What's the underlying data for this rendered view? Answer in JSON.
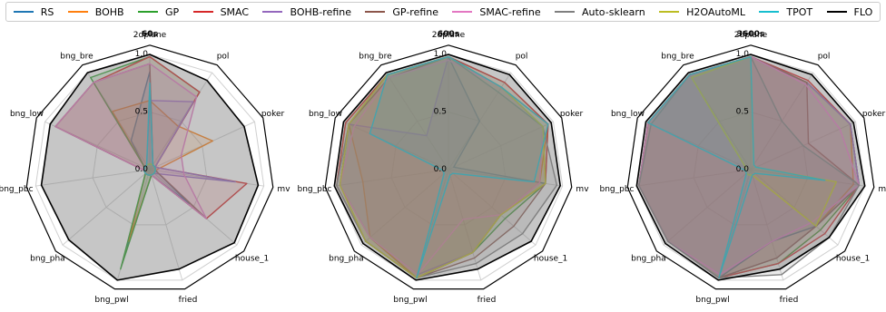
{
  "legend": [
    {
      "name": "RS",
      "color": "#1f77b4"
    },
    {
      "name": "BOHB",
      "color": "#ff7f0e"
    },
    {
      "name": "GP",
      "color": "#2ca02c"
    },
    {
      "name": "SMAC",
      "color": "#d62728"
    },
    {
      "name": "BOHB-refine",
      "color": "#9467bd"
    },
    {
      "name": "GP-refine",
      "color": "#8c564b"
    },
    {
      "name": "SMAC-refine",
      "color": "#e377c2"
    },
    {
      "name": "Auto-sklearn",
      "color": "#7f7f7f"
    },
    {
      "name": "H2OAutoML",
      "color": "#bcbd22"
    },
    {
      "name": "TPOT",
      "color": "#17becf"
    },
    {
      "name": "FLO",
      "color": "#000000"
    }
  ],
  "chart_data": [
    {
      "type": "radar",
      "title": "60s",
      "categories": [
        "2dplane",
        "pol",
        "poker",
        "mv",
        "house_1",
        "fried",
        "bng_pwl",
        "bng_pha",
        "bng_pbc",
        "bng_low",
        "bng_bre"
      ],
      "rlim": [
        0,
        1
      ],
      "rticks": [
        0.0,
        0.5,
        1.0
      ],
      "series": [
        {
          "name": "RS",
          "values": [
            0.85,
            0.05,
            0.05,
            0.05,
            0.45,
            0.05,
            0.7,
            0.05,
            0.05,
            0.05,
            0.3
          ]
        },
        {
          "name": "BOHB",
          "values": [
            0.6,
            0.45,
            0.6,
            0.05,
            0.05,
            0.05,
            0.65,
            0.05,
            0.05,
            0.05,
            0.6
          ]
        },
        {
          "name": "GP",
          "values": [
            0.98,
            0.8,
            0.05,
            0.05,
            0.05,
            0.05,
            0.9,
            0.05,
            0.05,
            0.05,
            0.95
          ]
        },
        {
          "name": "SMAC",
          "values": [
            0.98,
            0.8,
            0.05,
            0.85,
            0.65,
            0.05,
            0.05,
            0.05,
            0.05,
            0.9,
            0.9
          ]
        },
        {
          "name": "BOHB-refine",
          "values": [
            0.6,
            0.7,
            0.05,
            0.75,
            0.05,
            0.05,
            0.05,
            0.05,
            0.05,
            0.05,
            0.05
          ]
        },
        {
          "name": "GP-refine",
          "values": [
            0.92,
            0.05,
            0.05,
            0.05,
            0.65,
            0.05,
            0.05,
            0.05,
            0.05,
            0.9,
            0.9
          ]
        },
        {
          "name": "SMAC-refine",
          "values": [
            0.92,
            0.75,
            0.3,
            0.3,
            0.65,
            0.05,
            0.05,
            0.05,
            0.05,
            0.9,
            0.9
          ]
        },
        {
          "name": "Auto-sklearn",
          "values": [
            0.05,
            0.05,
            0.05,
            0.05,
            0.05,
            0.05,
            0.05,
            0.05,
            0.05,
            0.05,
            0.05
          ]
        },
        {
          "name": "H2OAutoML",
          "values": [
            0.05,
            0.05,
            0.05,
            0.05,
            0.05,
            0.05,
            0.05,
            0.05,
            0.05,
            0.05,
            0.05
          ]
        },
        {
          "name": "TPOT",
          "values": [
            0.75,
            0.05,
            0.05,
            0.05,
            0.05,
            0.05,
            0.05,
            0.05,
            0.05,
            0.05,
            0.05
          ]
        },
        {
          "name": "FLO",
          "values": [
            1.0,
            0.92,
            0.9,
            0.95,
            0.97,
            0.9,
            1.0,
            0.93,
            0.95,
            0.95,
            1.0
          ]
        }
      ]
    },
    {
      "type": "radar",
      "title": "600s",
      "categories": [
        "2dplane",
        "pol",
        "poker",
        "mv",
        "house_1",
        "fried",
        "bng_pwl",
        "bng_pha",
        "bng_pbc",
        "bng_low",
        "bng_bre"
      ],
      "rlim": [
        0,
        1
      ],
      "rticks": [
        0.0,
        0.5,
        1.0
      ],
      "series": [
        {
          "name": "RS",
          "values": [
            0.98,
            0.5,
            0.05,
            0.85,
            0.6,
            0.75,
            0.98,
            0.9,
            0.95,
            0.95,
            0.98
          ]
        },
        {
          "name": "BOHB",
          "values": [
            0.98,
            0.85,
            0.95,
            0.8,
            0.6,
            0.75,
            0.98,
            0.9,
            0.75,
            0.95,
            0.98
          ]
        },
        {
          "name": "GP",
          "values": [
            0.98,
            0.9,
            0.95,
            0.85,
            0.65,
            0.75,
            0.98,
            0.95,
            0.98,
            0.98,
            0.98
          ]
        },
        {
          "name": "SMAC",
          "values": [
            0.98,
            0.9,
            0.95,
            0.85,
            0.6,
            0.75,
            0.98,
            0.95,
            0.98,
            0.98,
            0.98
          ]
        },
        {
          "name": "BOHB-refine",
          "values": [
            0.98,
            0.85,
            0.9,
            0.8,
            0.6,
            0.75,
            0.95,
            0.9,
            0.95,
            0.95,
            0.35
          ]
        },
        {
          "name": "GP-refine",
          "values": [
            0.98,
            0.85,
            0.9,
            0.85,
            0.75,
            0.8,
            0.98,
            0.95,
            0.95,
            0.95,
            0.95
          ]
        },
        {
          "name": "SMAC-refine",
          "values": [
            0.95,
            0.85,
            0.9,
            0.8,
            0.6,
            0.45,
            0.95,
            0.9,
            0.95,
            0.9,
            0.95
          ]
        },
        {
          "name": "Auto-sklearn",
          "values": [
            0.98,
            0.8,
            0.9,
            0.95,
            0.85,
            0.85,
            0.98,
            0.95,
            0.98,
            0.95,
            0.98
          ]
        },
        {
          "name": "H2OAutoML",
          "values": [
            0.98,
            0.85,
            0.9,
            0.85,
            0.6,
            0.75,
            0.98,
            0.95,
            0.95,
            0.95,
            0.98
          ]
        },
        {
          "name": "TPOT",
          "values": [
            0.98,
            0.85,
            0.95,
            0.75,
            0.05,
            0.05,
            0.98,
            0.05,
            0.05,
            0.75,
            0.98
          ]
        },
        {
          "name": "FLO",
          "values": [
            1.0,
            0.98,
            0.98,
            0.98,
            0.95,
            0.9,
            1.0,
            0.98,
            1.0,
            1.0,
            1.0
          ]
        }
      ]
    },
    {
      "type": "radar",
      "title": "3600s",
      "categories": [
        "2dplane",
        "pol",
        "poker",
        "mv",
        "house_1",
        "fried",
        "bng_pwl",
        "bng_pha",
        "bng_pbc",
        "bng_low",
        "bng_bre"
      ],
      "rlim": [
        0,
        1
      ],
      "rticks": [
        0.0,
        0.5,
        1.0
      ],
      "series": [
        {
          "name": "RS",
          "values": [
            0.98,
            0.9,
            0.95,
            0.95,
            0.75,
            0.65,
            0.98,
            0.95,
            0.98,
            0.98,
            0.98
          ]
        },
        {
          "name": "BOHB",
          "values": [
            0.98,
            0.9,
            0.95,
            0.9,
            0.75,
            0.8,
            0.98,
            0.95,
            0.98,
            0.98,
            0.98
          ]
        },
        {
          "name": "GP",
          "values": [
            0.98,
            0.9,
            0.95,
            0.95,
            0.8,
            0.85,
            0.98,
            0.95,
            0.98,
            0.98,
            0.98
          ]
        },
        {
          "name": "SMAC",
          "values": [
            0.98,
            0.92,
            0.95,
            0.95,
            0.85,
            0.85,
            0.98,
            0.95,
            0.98,
            0.98,
            0.98
          ]
        },
        {
          "name": "BOHB-refine",
          "values": [
            0.98,
            0.9,
            0.95,
            0.95,
            0.75,
            0.8,
            0.98,
            0.95,
            0.98,
            0.98,
            0.98
          ]
        },
        {
          "name": "GP-refine",
          "values": [
            0.98,
            0.9,
            0.55,
            0.95,
            0.75,
            0.8,
            0.98,
            0.95,
            0.98,
            0.98,
            0.98
          ]
        },
        {
          "name": "SMAC-refine",
          "values": [
            0.98,
            0.88,
            0.85,
            0.95,
            0.7,
            0.65,
            0.95,
            0.95,
            0.98,
            0.98,
            0.98
          ]
        },
        {
          "name": "Auto-sklearn",
          "values": [
            0.98,
            0.5,
            0.5,
            0.95,
            0.9,
            0.95,
            0.98,
            0.95,
            0.98,
            0.95,
            0.98
          ]
        },
        {
          "name": "H2OAutoML",
          "values": [
            0.98,
            0.05,
            0.05,
            0.75,
            0.75,
            0.05,
            0.05,
            0.05,
            0.05,
            0.05,
            0.95
          ]
        },
        {
          "name": "TPOT",
          "values": [
            0.98,
            0.05,
            0.05,
            0.65,
            0.05,
            0.05,
            0.98,
            0.05,
            0.05,
            0.98,
            0.98
          ]
        },
        {
          "name": "FLO",
          "values": [
            1.0,
            0.98,
            0.98,
            1.0,
            0.9,
            0.9,
            1.0,
            0.98,
            1.0,
            1.0,
            1.0
          ]
        }
      ]
    }
  ]
}
